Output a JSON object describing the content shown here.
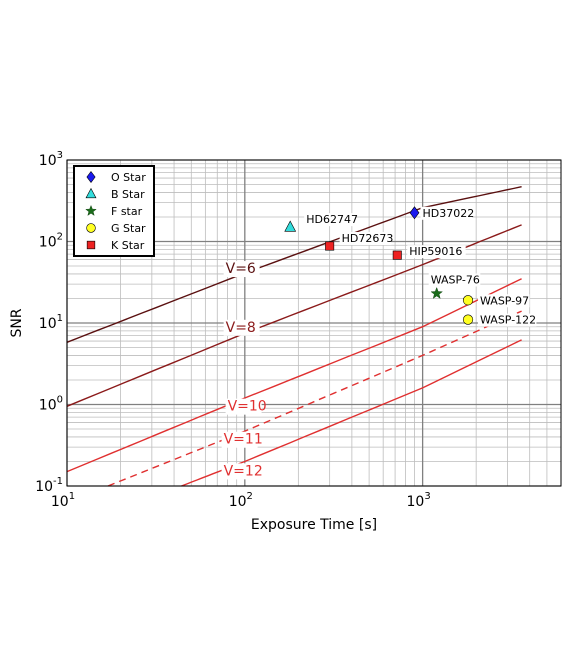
{
  "chart_data": {
    "type": "scatter",
    "xlabel": "Exposure Time [s]",
    "ylabel": "SNR",
    "xscale": "log",
    "yscale": "log",
    "xlim": [
      10,
      6000
    ],
    "ylim": [
      0.1,
      1000
    ],
    "grid": true,
    "legend_position": "top-left",
    "x_ticks": [
      {
        "value": 10,
        "base": "10",
        "exp": "1"
      },
      {
        "value": 100,
        "base": "10",
        "exp": "2"
      },
      {
        "value": 1000,
        "base": "10",
        "exp": "3"
      }
    ],
    "y_ticks": [
      {
        "value": 0.1,
        "base": "10",
        "exp": "-1"
      },
      {
        "value": 1,
        "base": "10",
        "exp": "0"
      },
      {
        "value": 10,
        "base": "10",
        "exp": "1"
      },
      {
        "value": 100,
        "base": "10",
        "exp": "2"
      },
      {
        "value": 1000,
        "base": "10",
        "exp": "3"
      }
    ],
    "curves": [
      {
        "label": "V=6",
        "color": "#5a1010",
        "dashed": false,
        "x": [
          10,
          100,
          1000,
          3600
        ],
        "y": [
          5.8,
          41,
          260,
          470
        ],
        "label_x": 78,
        "label_y": 41
      },
      {
        "label": "V=8",
        "color": "#8b1a1a",
        "dashed": false,
        "x": [
          10,
          100,
          1000,
          3600
        ],
        "y": [
          0.95,
          7.5,
          52,
          160
        ],
        "label_x": 78,
        "label_y": 7.8
      },
      {
        "label": "V=10",
        "color": "#e03030",
        "dashed": false,
        "x": [
          10,
          100,
          1000,
          3600
        ],
        "y": [
          0.15,
          1.2,
          9,
          35
        ],
        "label_x": 80,
        "label_y": 0.84
      },
      {
        "label": "V=11",
        "color": "#e03030",
        "dashed": true,
        "x": [
          17,
          100,
          1000,
          3600
        ],
        "y": [
          0.1,
          0.47,
          4,
          14
        ],
        "label_x": 76,
        "label_y": 0.33
      },
      {
        "label": "V=12",
        "color": "#e03030",
        "dashed": false,
        "x": [
          44,
          100,
          1000,
          3600
        ],
        "y": [
          0.1,
          0.2,
          1.6,
          6.2
        ],
        "label_x": 76,
        "label_y": 0.135
      }
    ],
    "stars": [
      {
        "name": "HD37022",
        "type": "O Star",
        "x": 900,
        "y": 225,
        "label_dx": 8,
        "label_dy": 0
      },
      {
        "name": "HD62747",
        "type": "B Star",
        "x": 180,
        "y": 150,
        "label_dx": 16,
        "label_dy": -8
      },
      {
        "name": "HD72673",
        "type": "K Star",
        "x": 300,
        "y": 88,
        "label_dx": 12,
        "label_dy": -8
      },
      {
        "name": "HIP59016",
        "type": "K Star",
        "x": 720,
        "y": 68,
        "label_dx": 12,
        "label_dy": -4
      },
      {
        "name": "WASP-76",
        "type": "F star",
        "x": 1200,
        "y": 23,
        "label_dx": -6,
        "label_dy": -14
      },
      {
        "name": "WASP-97",
        "type": "G Star",
        "x": 1800,
        "y": 19,
        "label_dx": 12,
        "label_dy": 0
      },
      {
        "name": "WASP-122",
        "type": "G Star",
        "x": 1800,
        "y": 11,
        "label_dx": 12,
        "label_dy": 0
      }
    ],
    "legend": [
      {
        "label": "O Star",
        "marker": "diamond",
        "color": "#1a1aee"
      },
      {
        "label": "B Star",
        "marker": "triangle",
        "color": "#33dddd"
      },
      {
        "label": "F star",
        "marker": "star",
        "color": "#1a6b1a"
      },
      {
        "label": "G Star",
        "marker": "circle",
        "color": "#ffff22"
      },
      {
        "label": "K Star",
        "marker": "square",
        "color": "#ee2222"
      }
    ]
  }
}
